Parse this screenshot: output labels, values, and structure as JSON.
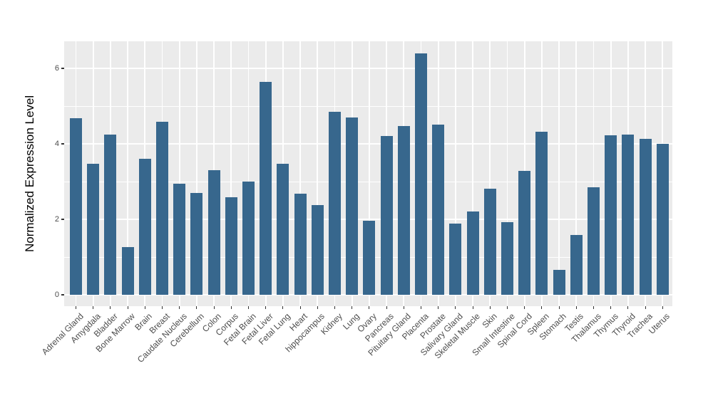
{
  "chart_data": {
    "type": "bar",
    "title": "",
    "xlabel": "",
    "ylabel": "Normalized Expression Level",
    "categories": [
      "Adrenal Gland",
      "Amygdala",
      "Bladder",
      "Bone Marrow",
      "Brain",
      "Breast",
      "Caudate Nucleus",
      "Cerebellum",
      "Colon",
      "Corpus",
      "Fetal Brain",
      "Fetal Liver",
      "Fetal Lung",
      "Heart",
      "hippocampus",
      "Kidney",
      "Lung",
      "Ovary",
      "Pancreas",
      "Pituitary Gland",
      "Placenta",
      "Prostate",
      "Salivary Gland",
      "Skeletal Muscle",
      "Skin",
      "Small Intestine",
      "Spinal Cord",
      "Spleen",
      "Stomach",
      "Testis",
      "Thalamus",
      "Thymus",
      "Thyroid",
      "Trachea",
      "Uterus"
    ],
    "values": [
      4.67,
      3.47,
      4.25,
      1.27,
      3.6,
      4.58,
      2.95,
      2.7,
      3.3,
      2.58,
      3.0,
      5.64,
      3.48,
      2.67,
      2.38,
      4.85,
      4.7,
      1.97,
      4.2,
      4.47,
      6.4,
      4.51,
      1.88,
      2.2,
      2.81,
      1.93,
      3.29,
      4.33,
      0.66,
      1.58,
      2.85,
      4.23,
      4.24,
      4.14,
      4.0
    ],
    "ylim": [
      0,
      6.72
    ],
    "yticks": [
      0,
      2,
      4,
      6
    ],
    "yticks_minor": [
      1,
      3,
      5
    ],
    "grid": "on",
    "legend": "none",
    "x_tick_rotation": 45,
    "colors": {
      "bar_fill": "#37678D",
      "panel_background": "#EBEBEB",
      "grid_line": "#FFFFFF",
      "axis_text": "#4D4D4D",
      "axis_title": "#000000",
      "figure_background": "#FFFFFF"
    }
  }
}
